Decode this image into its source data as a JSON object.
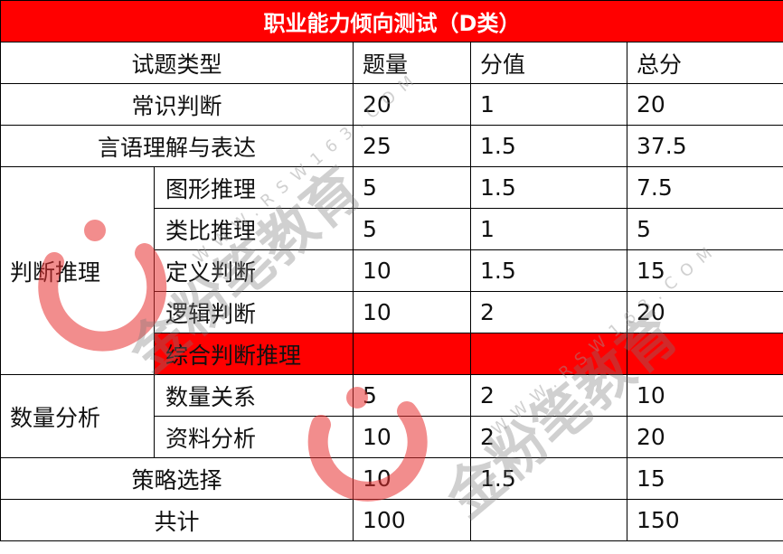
{
  "title": "职业能力倾向测试（D类）",
  "headers": [
    "试题类型",
    "题量",
    "分值",
    "总分"
  ],
  "rows": {
    "changshi": {
      "label": "常识判断",
      "count": "20",
      "score": "1",
      "total": "20"
    },
    "yanyu": {
      "label": "言语理解与表达",
      "count": "25",
      "score": "1.5",
      "total": "37.5"
    },
    "panduan": {
      "label": "判断推理",
      "items": [
        {
          "label": "图形推理",
          "count": "5",
          "score": "1.5",
          "total": "7.5"
        },
        {
          "label": "类比推理",
          "count": "5",
          "score": "1",
          "total": "5"
        },
        {
          "label": "定义判断",
          "count": "10",
          "score": "1.5",
          "total": "15"
        },
        {
          "label": "逻辑判断",
          "count": "10",
          "score": "2",
          "total": "20"
        },
        {
          "label": "综合判断推理",
          "count": "",
          "score": "",
          "total": "",
          "highlight": "#ff0000"
        }
      ]
    },
    "shuliang": {
      "label": "数量分析",
      "items": [
        {
          "label": "数量关系",
          "count": "5",
          "score": "2",
          "total": "10"
        },
        {
          "label": "资料分析",
          "count": "10",
          "score": "2",
          "total": "20"
        }
      ]
    },
    "celue": {
      "label": "策略选择",
      "count": "10",
      "score": "1.5",
      "total": "15"
    },
    "total": {
      "label": "共计",
      "count": "100",
      "score": "",
      "total": "150"
    }
  },
  "watermark": {
    "brand": "金粉笔教育",
    "url": "WWW.RSW163.COM",
    "color": "#e83030"
  },
  "colors": {
    "header_bg": "#ff0000",
    "header_text": "#ffffff"
  }
}
